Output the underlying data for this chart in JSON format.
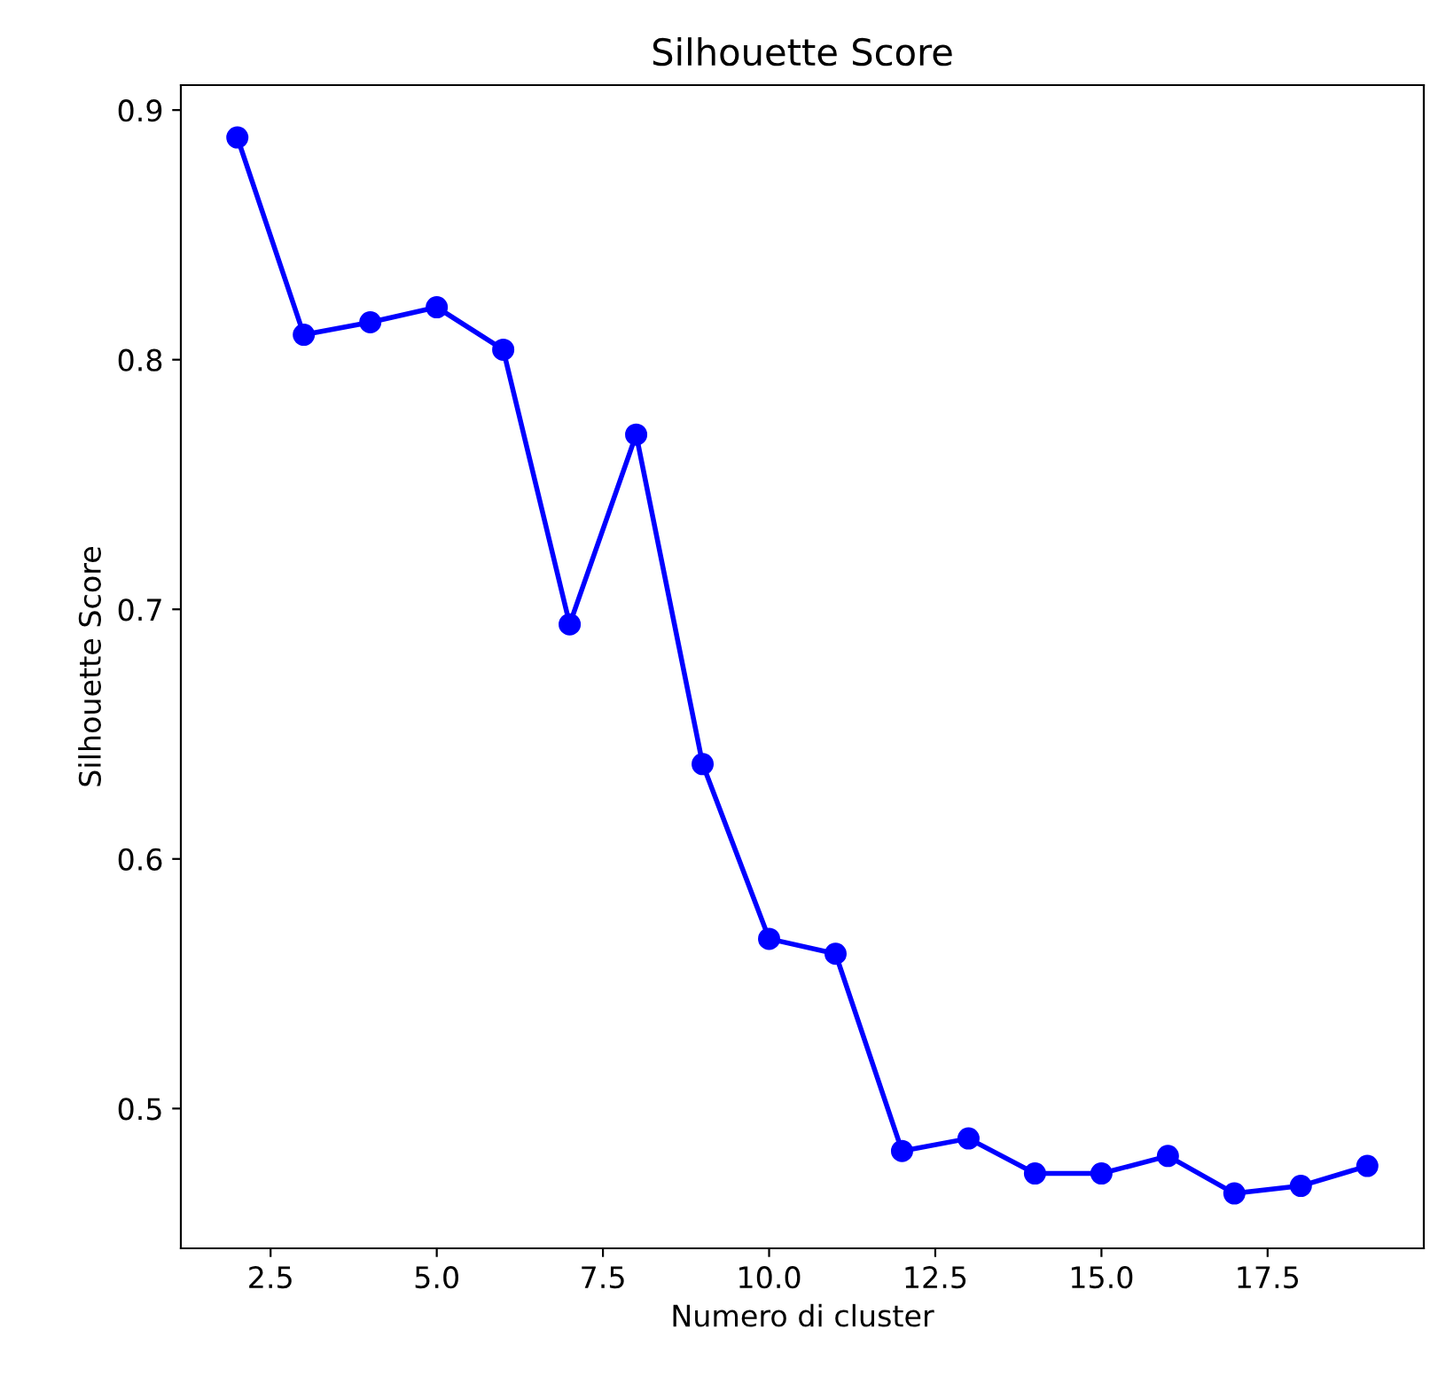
{
  "chart_data": {
    "type": "line",
    "title": "Silhouette Score",
    "xlabel": "Numero di cluster",
    "ylabel": "Silhouette Score",
    "x": [
      2,
      3,
      4,
      5,
      6,
      7,
      8,
      9,
      10,
      11,
      12,
      13,
      14,
      15,
      16,
      17,
      18,
      19
    ],
    "series": [
      {
        "color": "#0000ff",
        "values": [
          0.889,
          0.81,
          0.815,
          0.821,
          0.804,
          0.694,
          0.77,
          0.638,
          0.568,
          0.562,
          0.483,
          0.488,
          0.474,
          0.474,
          0.481,
          0.466,
          0.469,
          0.477
        ]
      }
    ],
    "xlim": [
      1.15,
      19.85
    ],
    "ylim": [
      0.444,
      0.91
    ],
    "xticks": [
      {
        "value": 2.5,
        "label": "2.5"
      },
      {
        "value": 5,
        "label": "5.0"
      },
      {
        "value": 7.5,
        "label": "7.5"
      },
      {
        "value": 10,
        "label": "10.0"
      },
      {
        "value": 12.5,
        "label": "12.5"
      },
      {
        "value": 15,
        "label": "15.0"
      },
      {
        "value": 17.5,
        "label": "17.5"
      }
    ],
    "yticks": [
      0.5,
      0.6,
      0.7,
      0.8,
      0.9
    ],
    "marker": "circle",
    "line_style": "solid",
    "grid": false
  }
}
